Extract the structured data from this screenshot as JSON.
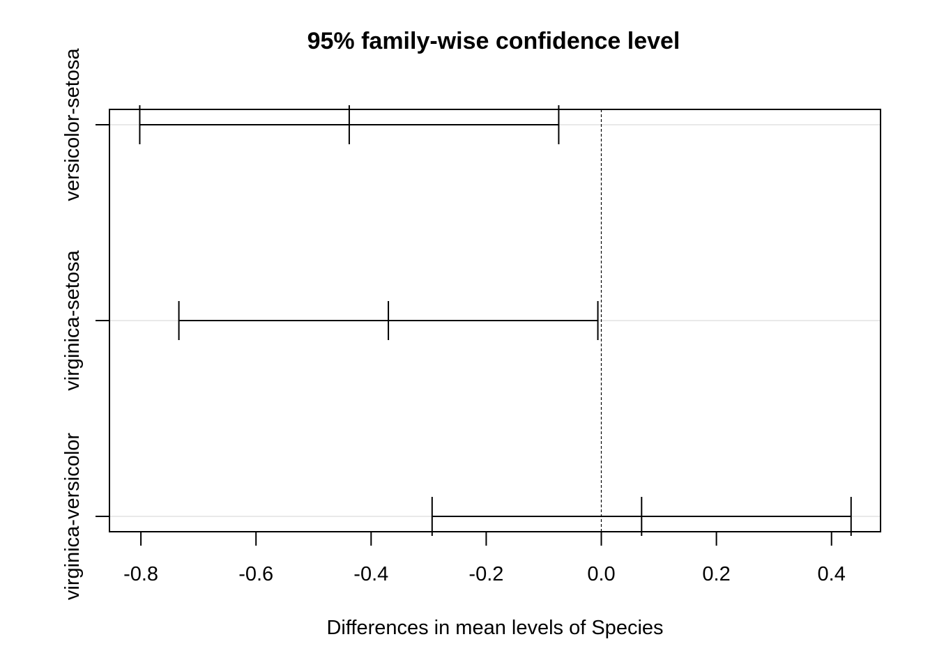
{
  "chart_data": {
    "type": "errorbar",
    "title": "95% family-wise confidence level",
    "xlabel": "Differences in mean levels of Species",
    "ylabel": "",
    "xlim": [
      -0.85,
      0.49
    ],
    "x_ticks": [
      -0.8,
      -0.6,
      -0.4,
      -0.2,
      0.0,
      0.2,
      0.4
    ],
    "x_tick_labels": [
      "-0.8",
      "-0.6",
      "-0.4",
      "-0.2",
      "0.0",
      "0.2",
      "0.4"
    ],
    "reference_line": 0.0,
    "reference_line_style": "dashed",
    "horizontal_grid": true,
    "comparisons": [
      {
        "label": "versicolor-setosa",
        "diff": -0.438,
        "lwr": -0.802,
        "upr": -0.074
      },
      {
        "label": "virginica-setosa",
        "diff": -0.37,
        "lwr": -0.734,
        "upr": -0.006
      },
      {
        "label": "virginica-versicolor",
        "diff": 0.07,
        "lwr": -0.294,
        "upr": 0.434
      }
    ],
    "colors": {
      "line": "#000000",
      "grid": "#d3d3d3",
      "background": "#ffffff"
    }
  }
}
